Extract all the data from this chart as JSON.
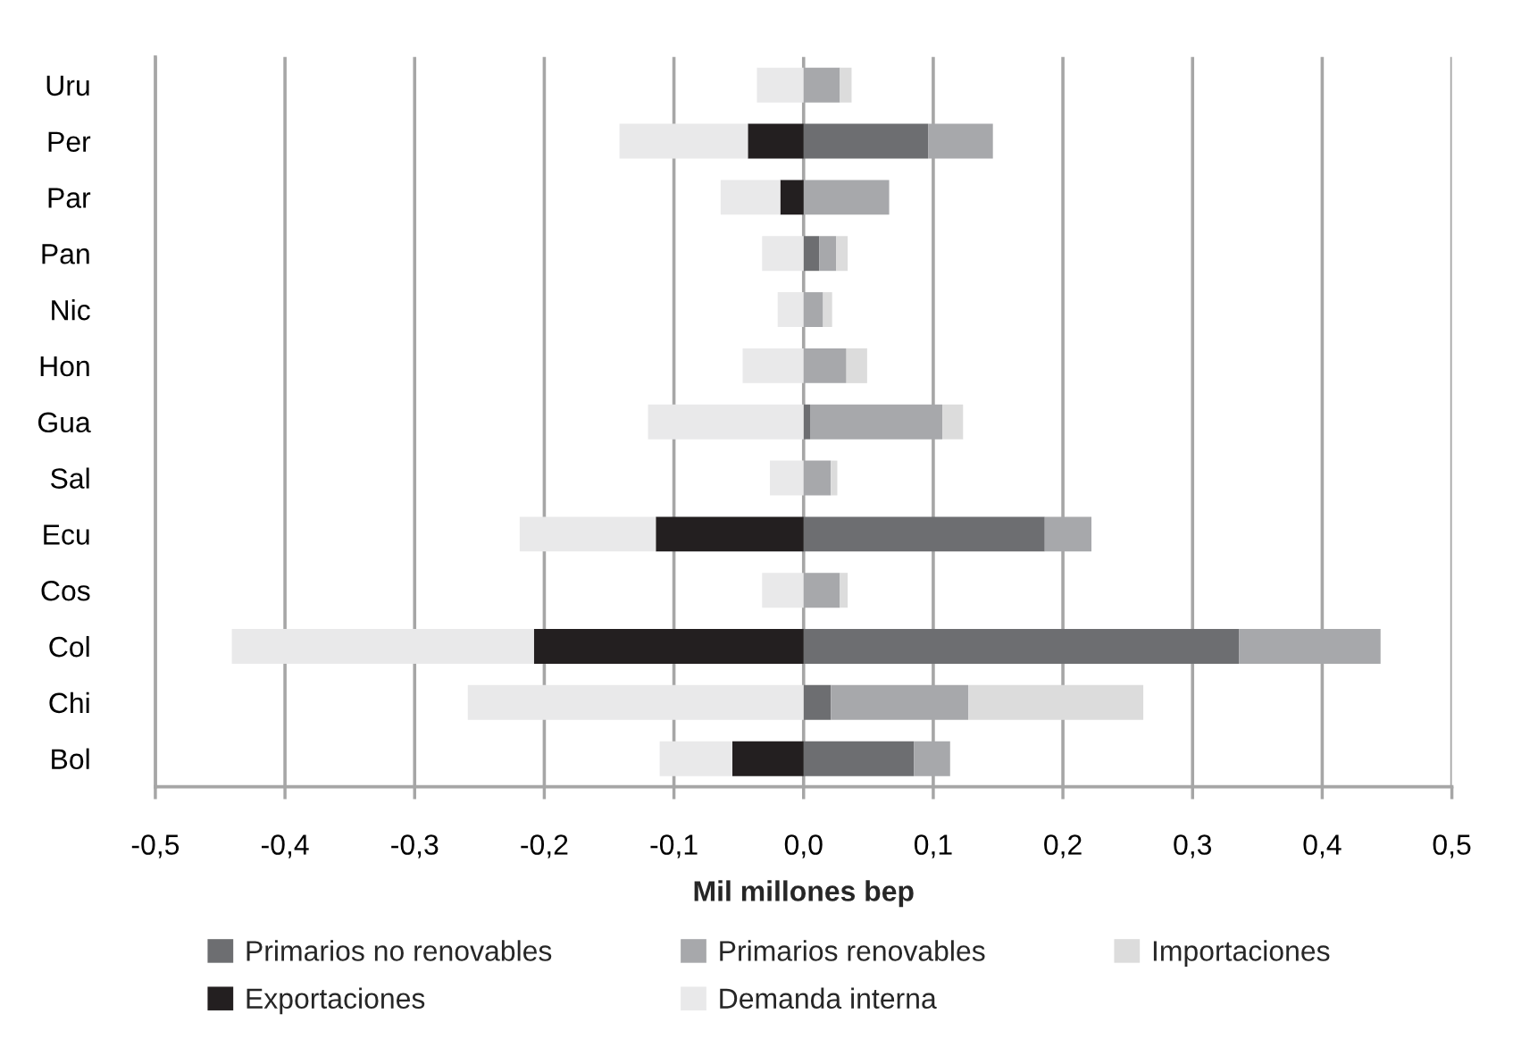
{
  "chart_data": {
    "type": "bar",
    "orientation": "horizontal",
    "stacked": true,
    "xlabel": "Mil millones bep",
    "categories": [
      "Uru",
      "Per",
      "Par",
      "Pan",
      "Nic",
      "Hon",
      "Gua",
      "Sal",
      "Ecu",
      "Cos",
      "Col",
      "Chi",
      "Bol"
    ],
    "series": [
      {
        "name": "Primarios no renovables",
        "color": "#6d6e71",
        "values": [
          null,
          0.096,
          null,
          0.012,
          null,
          null,
          0.005,
          null,
          0.186,
          null,
          0.336,
          0.021,
          0.085
        ]
      },
      {
        "name": "Primarios renovables",
        "color": "#a7a8ab",
        "values": [
          0.028,
          0.05,
          0.066,
          0.013,
          0.015,
          0.033,
          0.102,
          0.021,
          0.036,
          0.028,
          0.109,
          0.106,
          0.028
        ]
      },
      {
        "name": "Importaciones",
        "color": "#dcdcdc",
        "values": [
          0.009,
          null,
          null,
          0.009,
          0.007,
          0.016,
          0.016,
          0.005,
          null,
          0.006,
          null,
          0.135,
          null
        ]
      },
      {
        "name": "Exportaciones",
        "color": "#231f20",
        "values": [
          null,
          -0.043,
          -0.018,
          null,
          null,
          null,
          null,
          null,
          -0.114,
          null,
          -0.208,
          null,
          -0.055
        ]
      },
      {
        "name": "Demanda interna",
        "color": "#e9e9ea",
        "values": [
          -0.036,
          -0.099,
          -0.046,
          -0.032,
          -0.02,
          -0.047,
          -0.12,
          -0.026,
          -0.105,
          -0.032,
          -0.233,
          -0.259,
          -0.056
        ]
      }
    ],
    "xlim": [
      -0.5,
      0.5
    ],
    "xticks": [
      {
        "value": -0.5,
        "label": "-0,5"
      },
      {
        "value": -0.4,
        "label": "-0,4"
      },
      {
        "value": -0.3,
        "label": "-0,3"
      },
      {
        "value": -0.2,
        "label": "-0,2"
      },
      {
        "value": -0.1,
        "label": "-0,1"
      },
      {
        "value": 0.0,
        "label": "0,0"
      },
      {
        "value": 0.1,
        "label": "0,1"
      },
      {
        "value": 0.2,
        "label": "0,2"
      },
      {
        "value": 0.3,
        "label": "0,3"
      },
      {
        "value": 0.4,
        "label": "0,4"
      },
      {
        "value": 0.5,
        "label": "0,5"
      }
    ],
    "grid": "x",
    "legend": "bottom"
  }
}
